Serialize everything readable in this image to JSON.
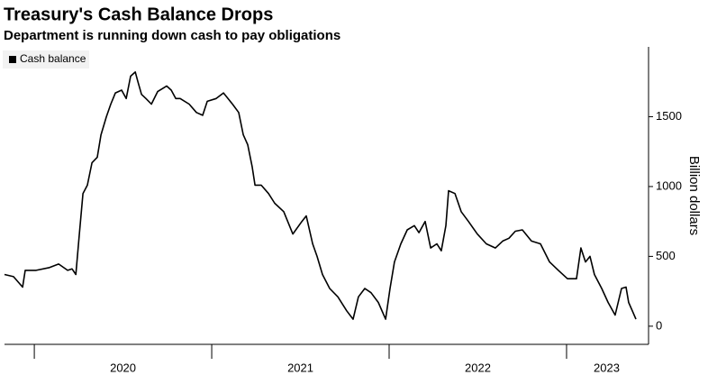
{
  "chart_data": {
    "type": "line",
    "title": "Treasury's Cash Balance Drops",
    "subtitle": "Department is running down cash to pay obligations",
    "y_axis_label": "Billion dollars",
    "legend_position": "top-left",
    "grid": false,
    "xlim": [
      2019.832,
      2023.452
    ],
    "xticks": [
      {
        "value": 2020,
        "label": "2020"
      },
      {
        "value": 2021,
        "label": "2021"
      },
      {
        "value": 2022,
        "label": "2022"
      },
      {
        "value": 2023,
        "label": "2023"
      }
    ],
    "ylim": [
      -130,
      2000
    ],
    "yticks": [
      0,
      500,
      1000,
      1500
    ],
    "x": [
      2019.832,
      2019.883,
      2019.934,
      2019.949,
      2020.01,
      2020.086,
      2020.137,
      2020.188,
      2020.213,
      2020.234,
      2020.254,
      2020.274,
      2020.299,
      2020.325,
      2020.355,
      2020.376,
      2020.406,
      2020.431,
      2020.457,
      2020.492,
      2020.518,
      2020.543,
      2020.569,
      2020.584,
      2020.604,
      2020.629,
      2020.66,
      2020.695,
      2020.746,
      2020.772,
      2020.797,
      2020.822,
      2020.873,
      2020.914,
      2020.949,
      2020.975,
      2021.025,
      2021.066,
      2021.117,
      2021.152,
      2021.178,
      2021.203,
      2021.228,
      2021.244,
      2021.279,
      2021.32,
      2021.355,
      2021.406,
      2021.457,
      2021.508,
      2021.533,
      2021.569,
      2021.594,
      2021.624,
      2021.665,
      2021.711,
      2021.761,
      2021.797,
      2021.827,
      2021.863,
      2021.898,
      2021.939,
      2021.98,
      2022.005,
      2022.03,
      2022.066,
      2022.102,
      2022.142,
      2022.168,
      2022.203,
      2022.234,
      2022.269,
      2022.294,
      2022.32,
      2022.335,
      2022.371,
      2022.406,
      2022.447,
      2022.497,
      2022.548,
      2022.599,
      2022.64,
      2022.675,
      2022.711,
      2022.751,
      2022.802,
      2022.853,
      2022.904,
      2022.954,
      2023.005,
      2023.056,
      2023.081,
      2023.107,
      2023.132,
      2023.157,
      2023.198,
      2023.234,
      2023.274,
      2023.31,
      2023.335,
      2023.35,
      2023.371,
      2023.391
    ],
    "series": [
      {
        "name": "Cash balance",
        "color": "#000000",
        "values": [
          370,
          355,
          280,
          400,
          400,
          420,
          445,
          400,
          410,
          370,
          660,
          950,
          1010,
          1170,
          1210,
          1370,
          1500,
          1590,
          1670,
          1690,
          1630,
          1790,
          1820,
          1750,
          1660,
          1630,
          1590,
          1680,
          1720,
          1690,
          1630,
          1630,
          1590,
          1530,
          1510,
          1610,
          1630,
          1670,
          1590,
          1530,
          1370,
          1300,
          1140,
          1010,
          1010,
          950,
          880,
          820,
          660,
          750,
          790,
          590,
          500,
          370,
          270,
          210,
          110,
          50,
          210,
          270,
          240,
          170,
          50,
          270,
          460,
          590,
          690,
          720,
          670,
          750,
          560,
          590,
          540,
          720,
          970,
          950,
          820,
          750,
          660,
          590,
          560,
          610,
          630,
          680,
          690,
          610,
          590,
          460,
          400,
          340,
          340,
          560,
          460,
          500,
          370,
          270,
          170,
          80,
          270,
          280,
          170,
          110,
          50
        ]
      }
    ]
  }
}
